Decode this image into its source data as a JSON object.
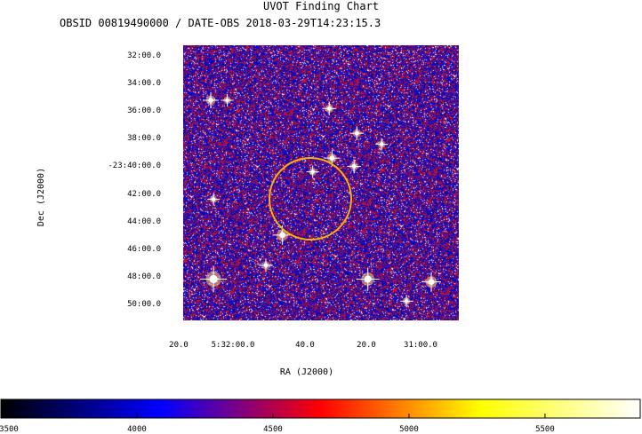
{
  "header": {
    "title": "UVOT Finding Chart",
    "subtitle": "OBSID 00819490000 / DATE-OBS 2018-03-29T14:23:15.3"
  },
  "chart_data": {
    "type": "heatmap",
    "title": "UVOT Finding Chart",
    "subtitle": "OBSID 00819490000 / DATE-OBS 2018-03-29T14:23:15.3",
    "xlabel": "RA (J2000)",
    "ylabel": "Dec (J2000)",
    "x_ticks": [
      "20.0",
      "5:32:00.0",
      "40.0",
      "20.0",
      "31:00.0"
    ],
    "y_ticks": [
      "32:00.0",
      "34:00.0",
      "36:00.0",
      "38:00.0",
      "-23:40:00.0",
      "42:00.0",
      "44:00.0",
      "46:00.0",
      "48:00.0",
      "50:00.0"
    ],
    "colorbar": {
      "ticks": [
        "3500",
        "4000",
        "4500",
        "5000",
        "5500"
      ],
      "range": [
        3500,
        5850
      ],
      "colors": [
        "#000000",
        "#0000ff",
        "#ff0000",
        "#ffff00",
        "#ffffff"
      ]
    },
    "circle_color": "#ffb000",
    "stars": [
      {
        "x": 0.11,
        "y": 0.85,
        "mag": 3
      },
      {
        "x": 0.67,
        "y": 0.85,
        "mag": 2.5
      },
      {
        "x": 0.9,
        "y": 0.86,
        "mag": 2
      },
      {
        "x": 0.36,
        "y": 0.69,
        "mag": 2
      },
      {
        "x": 0.1,
        "y": 0.2,
        "mag": 1.5
      },
      {
        "x": 0.54,
        "y": 0.41,
        "mag": 1.5
      },
      {
        "x": 0.62,
        "y": 0.44,
        "mag": 1.2
      },
      {
        "x": 0.63,
        "y": 0.32,
        "mag": 1.2
      },
      {
        "x": 0.53,
        "y": 0.23,
        "mag": 1.2
      },
      {
        "x": 0.3,
        "y": 0.8,
        "mag": 1.2
      },
      {
        "x": 0.16,
        "y": 0.2,
        "mag": 1
      },
      {
        "x": 0.72,
        "y": 0.36,
        "mag": 1
      },
      {
        "x": 0.47,
        "y": 0.46,
        "mag": 1
      },
      {
        "x": 0.11,
        "y": 0.56,
        "mag": 1
      },
      {
        "x": 0.81,
        "y": 0.93,
        "mag": 1
      }
    ]
  }
}
